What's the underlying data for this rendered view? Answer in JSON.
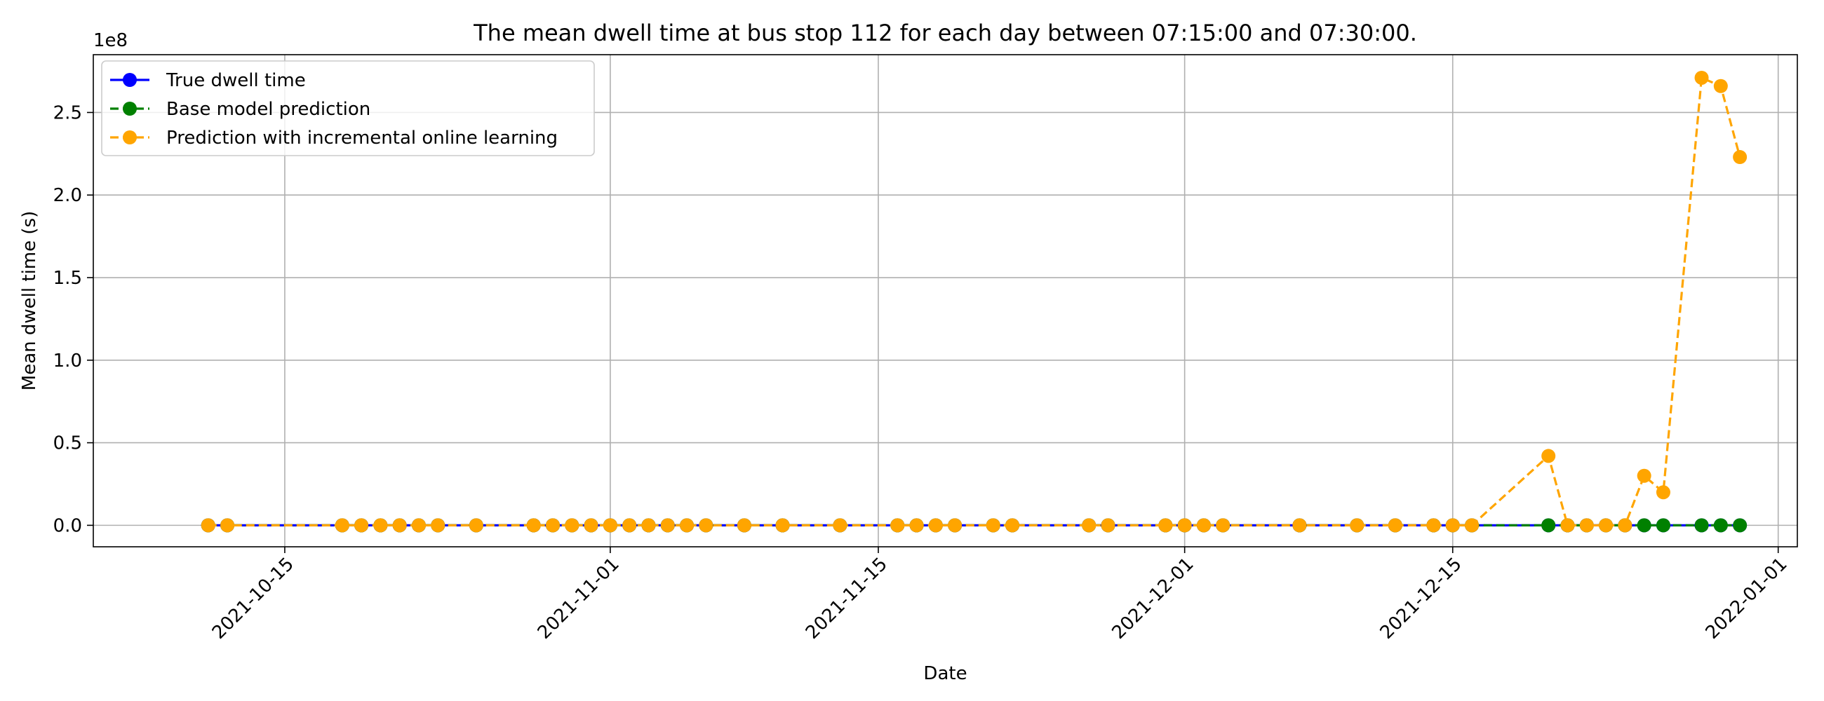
{
  "chart_data": {
    "type": "line",
    "title": "The mean dwell time at bus stop 112 for each day between 07:15:00 and 07:30:00.",
    "xlabel": "Date",
    "ylabel": "Mean dwell time (s)",
    "y_offset_label": "1e8",
    "y_scale": 100000000,
    "xlim": [
      "2021-10-05",
      "2022-01-02"
    ],
    "ylim": [
      -0.13,
      2.85
    ],
    "x_ticks": [
      "2021-10-15",
      "2021-11-01",
      "2021-11-15",
      "2021-12-01",
      "2021-12-15",
      "2022-01-01"
    ],
    "y_ticks": [
      0.0,
      0.5,
      1.0,
      1.5,
      2.0,
      2.5
    ],
    "y_tick_labels": [
      "0.0",
      "0.5",
      "1.0",
      "1.5",
      "2.0",
      "2.5"
    ],
    "grid": true,
    "legend_position": "top-left",
    "x": [
      "2021-10-11",
      "2021-10-12",
      "2021-10-18",
      "2021-10-19",
      "2021-10-20",
      "2021-10-21",
      "2021-10-22",
      "2021-10-23",
      "2021-10-25",
      "2021-10-28",
      "2021-10-29",
      "2021-10-30",
      "2021-10-31",
      "2021-11-01",
      "2021-11-02",
      "2021-11-03",
      "2021-11-04",
      "2021-11-05",
      "2021-11-06",
      "2021-11-08",
      "2021-11-10",
      "2021-11-13",
      "2021-11-16",
      "2021-11-17",
      "2021-11-18",
      "2021-11-19",
      "2021-11-21",
      "2021-11-22",
      "2021-11-26",
      "2021-11-27",
      "2021-11-30",
      "2021-12-01",
      "2021-12-02",
      "2021-12-03",
      "2021-12-07",
      "2021-12-10",
      "2021-12-12",
      "2021-12-14",
      "2021-12-15",
      "2021-12-16",
      "2021-12-20",
      "2021-12-21",
      "2021-12-22",
      "2021-12-23",
      "2021-12-24",
      "2021-12-25",
      "2021-12-26",
      "2021-12-28",
      "2021-12-29",
      "2021-12-30"
    ],
    "series": [
      {
        "name": "True dwell time",
        "color": "#0000ff",
        "line_style": "solid",
        "values": [
          0,
          0,
          0,
          0,
          0,
          0,
          0,
          0,
          0,
          0,
          0,
          0,
          0,
          0,
          0,
          0,
          0,
          0,
          0,
          0,
          0,
          0,
          0,
          0,
          0,
          0,
          0,
          0,
          0,
          0,
          0,
          0,
          0,
          0,
          0,
          0,
          0,
          0,
          0,
          0,
          0,
          0,
          0,
          0,
          0,
          0,
          0,
          0,
          0,
          0
        ]
      },
      {
        "name": "Base model prediction",
        "color": "#008000",
        "line_style": "dashed",
        "values": [
          0,
          0,
          0,
          0,
          0,
          0,
          0,
          0,
          0,
          0,
          0,
          0,
          0,
          0,
          0,
          0,
          0,
          0,
          0,
          0,
          0,
          0,
          0,
          0,
          0,
          0,
          0,
          0,
          0,
          0,
          0,
          0,
          0,
          0,
          0,
          0,
          0,
          0,
          0,
          0,
          0,
          0,
          0,
          0,
          0,
          0,
          0,
          0,
          0,
          0
        ]
      },
      {
        "name": "Prediction with incremental online learning",
        "color": "#ffa500",
        "line_style": "dashed",
        "values": [
          0,
          0,
          0,
          0,
          0,
          0,
          0,
          0,
          0,
          0,
          0,
          0,
          0,
          0,
          0,
          0,
          0,
          0,
          0,
          0,
          0,
          0,
          0,
          0,
          0,
          0,
          0,
          0,
          0,
          0,
          0,
          0,
          0,
          0,
          0,
          0,
          0,
          0,
          0,
          0,
          0.42,
          0,
          0,
          0,
          0,
          0.3,
          0.2,
          2.71,
          2.66,
          2.23
        ],
        "hidden_points": [
          40,
          45,
          46,
          47,
          48,
          49
        ]
      }
    ]
  }
}
